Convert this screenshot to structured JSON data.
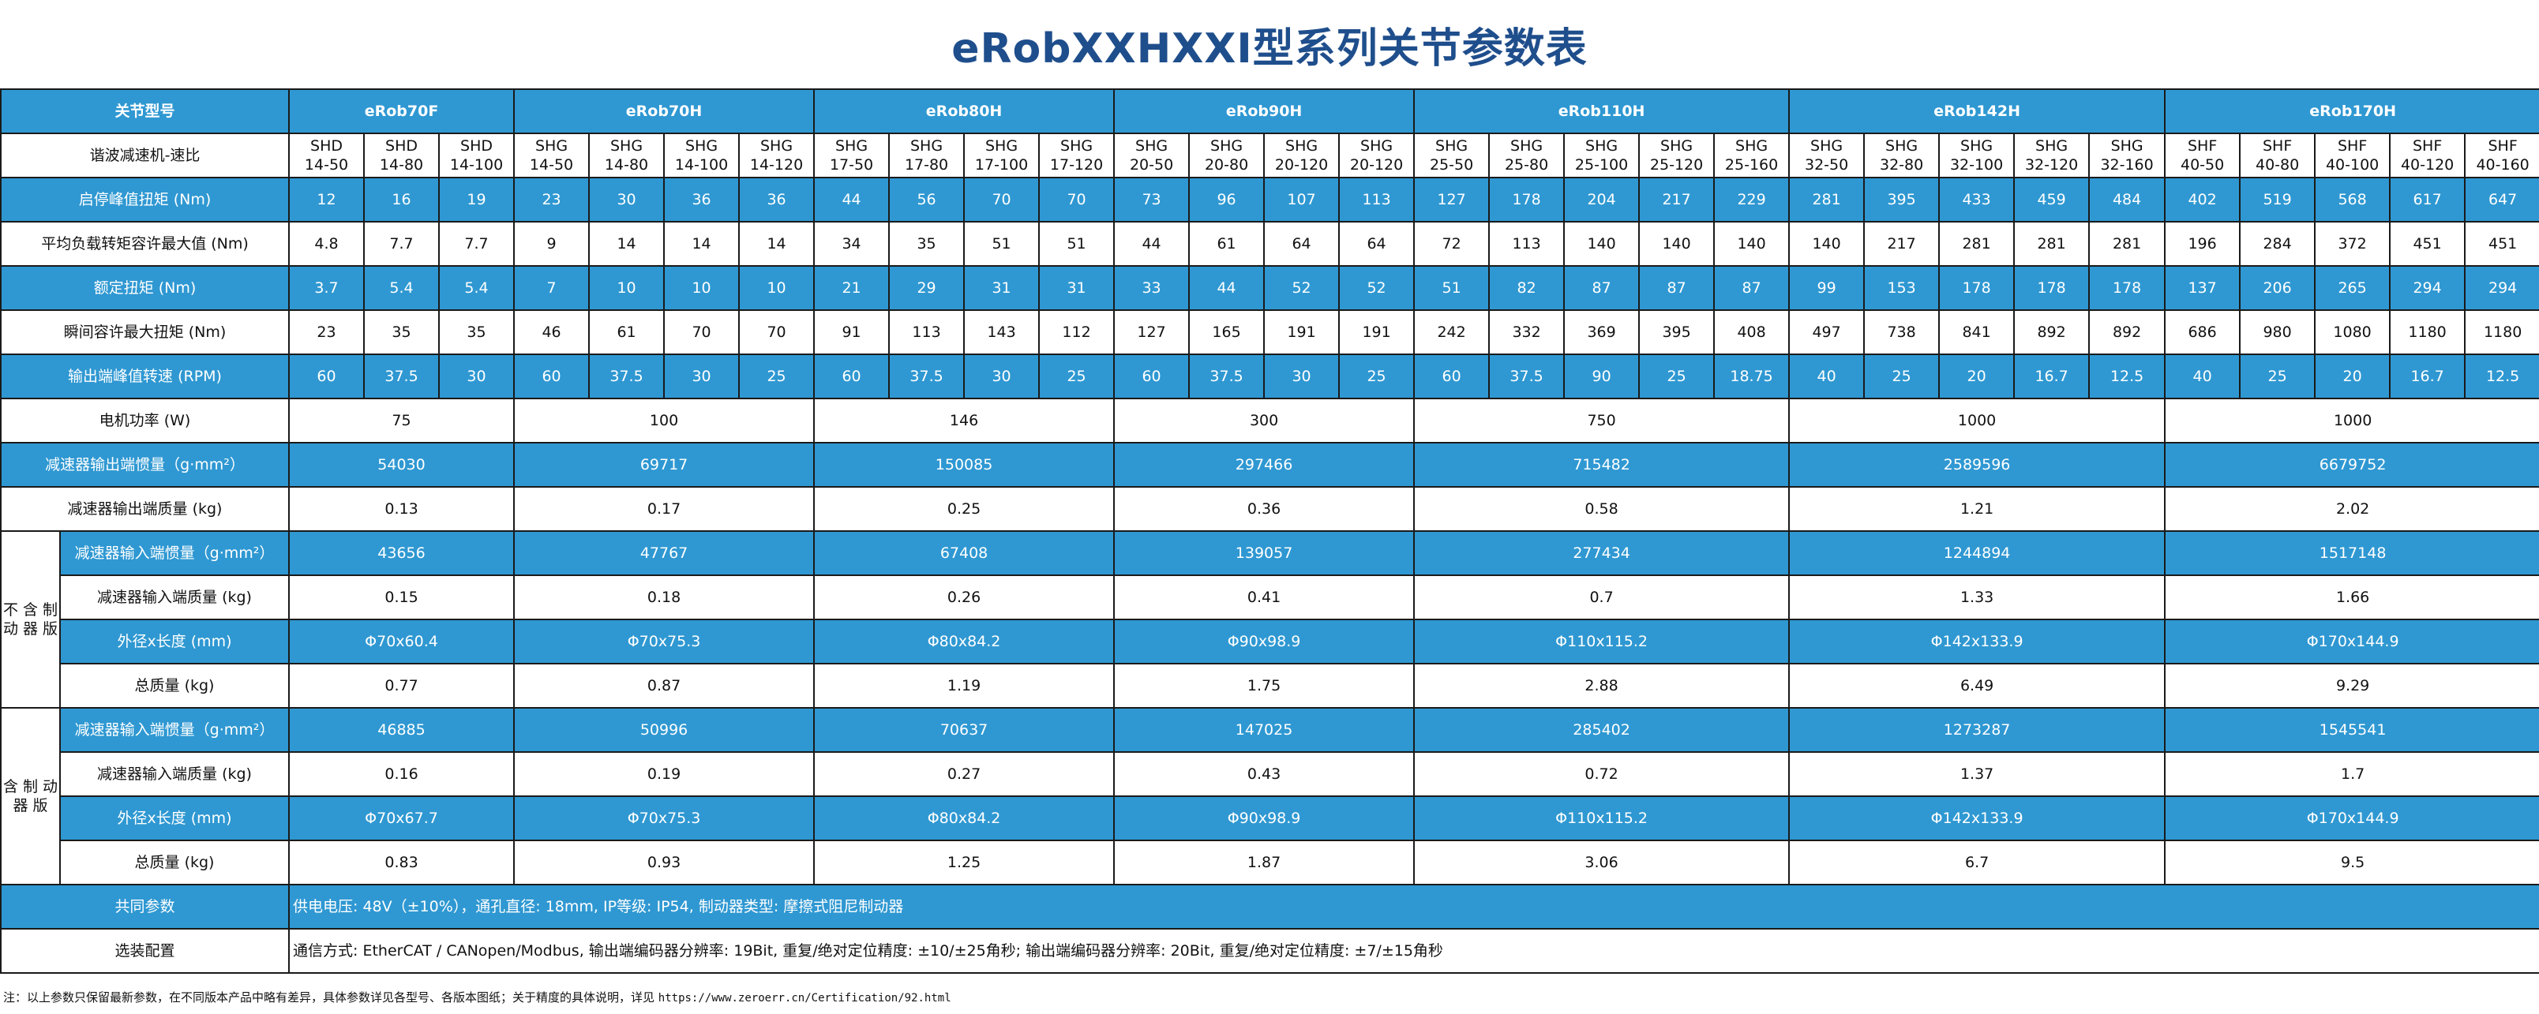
{
  "title": "eRobXXHXXI型系列关节参数表",
  "header": {
    "label": "关节型号",
    "models": [
      "eRob70F",
      "eRob70H",
      "eRob80H",
      "eRob90H",
      "eRob110H",
      "eRob142H",
      "eRob170H"
    ]
  },
  "ratio_row": {
    "label": "谐波减速机-速比",
    "values": [
      "SHD\n14-50",
      "SHD\n14-80",
      "SHD\n14-100",
      "SHG\n14-50",
      "SHG\n14-80",
      "SHG\n14-100",
      "SHG\n14-120",
      "SHG\n17-50",
      "SHG\n17-80",
      "SHG\n17-100",
      "SHG\n17-120",
      "SHG\n20-50",
      "SHG\n20-80",
      "SHG\n20-120",
      "SHG\n20-120",
      "SHG\n25-50",
      "SHG\n25-80",
      "SHG\n25-100",
      "SHG\n25-120",
      "SHG\n25-160",
      "SHG\n32-50",
      "SHG\n32-80",
      "SHG\n32-100",
      "SHG\n32-120",
      "SHG\n32-160",
      "SHF\n40-50",
      "SHF\n40-80",
      "SHF\n40-100",
      "SHF\n40-120",
      "SHF\n40-160"
    ]
  },
  "per_ratio_rows": [
    {
      "label": "启停峰值扭矩 (Nm)",
      "style": "blue",
      "values": [
        "12",
        "16",
        "19",
        "23",
        "30",
        "36",
        "36",
        "44",
        "56",
        "70",
        "70",
        "73",
        "96",
        "107",
        "113",
        "127",
        "178",
        "204",
        "217",
        "229",
        "281",
        "395",
        "433",
        "459",
        "484",
        "402",
        "519",
        "568",
        "617",
        "647"
      ]
    },
    {
      "label": "平均负载转矩容许最大值 (Nm)",
      "style": "white",
      "values": [
        "4.8",
        "7.7",
        "7.7",
        "9",
        "14",
        "14",
        "14",
        "34",
        "35",
        "51",
        "51",
        "44",
        "61",
        "64",
        "64",
        "72",
        "113",
        "140",
        "140",
        "140",
        "140",
        "217",
        "281",
        "281",
        "281",
        "196",
        "284",
        "372",
        "451",
        "451"
      ]
    },
    {
      "label": "额定扭矩 (Nm)",
      "style": "blue",
      "values": [
        "3.7",
        "5.4",
        "5.4",
        "7",
        "10",
        "10",
        "10",
        "21",
        "29",
        "31",
        "31",
        "33",
        "44",
        "52",
        "52",
        "51",
        "82",
        "87",
        "87",
        "87",
        "99",
        "153",
        "178",
        "178",
        "178",
        "137",
        "206",
        "265",
        "294",
        "294"
      ]
    },
    {
      "label": "瞬间容许最大扭矩 (Nm)",
      "style": "white",
      "values": [
        "23",
        "35",
        "35",
        "46",
        "61",
        "70",
        "70",
        "91",
        "113",
        "143",
        "112",
        "127",
        "165",
        "191",
        "191",
        "242",
        "332",
        "369",
        "395",
        "408",
        "497",
        "738",
        "841",
        "892",
        "892",
        "686",
        "980",
        "1080",
        "1180",
        "1180"
      ]
    },
    {
      "label": "输出端峰值转速 (RPM)",
      "style": "blue",
      "values": [
        "60",
        "37.5",
        "30",
        "60",
        "37.5",
        "30",
        "25",
        "60",
        "37.5",
        "30",
        "25",
        "60",
        "37.5",
        "30",
        "25",
        "60",
        "37.5",
        "90",
        "25",
        "18.75",
        "40",
        "25",
        "20",
        "16.7",
        "12.5",
        "40",
        "25",
        "20",
        "16.7",
        "12.5"
      ]
    }
  ],
  "per_model_rows": [
    {
      "label": "电机功率 (W)",
      "style": "white",
      "values": [
        "75",
        "100",
        "146",
        "300",
        "750",
        "1000",
        "1000"
      ]
    },
    {
      "label": "减速器输出端惯量（g·mm²）",
      "style": "blue",
      "values": [
        "54030",
        "69717",
        "150085",
        "297466",
        "715482",
        "2589596",
        "6679752"
      ]
    },
    {
      "label": "减速器输出端质量 (kg)",
      "style": "white",
      "values": [
        "0.13",
        "0.17",
        "0.25",
        "0.36",
        "0.58",
        "1.21",
        "2.02"
      ]
    }
  ],
  "no_brake": {
    "label": "不\n含\n制\n动\n器\n版",
    "rows": [
      {
        "label": "减速器输入端惯量（g·mm²）",
        "style": "blue",
        "values": [
          "43656",
          "47767",
          "67408",
          "139057",
          "277434",
          "1244894",
          "1517148"
        ]
      },
      {
        "label": "减速器输入端质量 (kg)",
        "style": "white",
        "values": [
          "0.15",
          "0.18",
          "0.26",
          "0.41",
          "0.7",
          "1.33",
          "1.66"
        ]
      },
      {
        "label": "外径x长度 (mm)",
        "style": "blue",
        "values": [
          "Φ70x60.4",
          "Φ70x75.3",
          "Φ80x84.2",
          "Φ90x98.9",
          "Φ110x115.2",
          "Φ142x133.9",
          "Φ170x144.9"
        ]
      },
      {
        "label": "总质量 (kg)",
        "style": "white",
        "values": [
          "0.77",
          "0.87",
          "1.19",
          "1.75",
          "2.88",
          "6.49",
          "9.29"
        ]
      }
    ]
  },
  "with_brake": {
    "label": "含\n制\n动\n器\n版",
    "rows": [
      {
        "label": "减速器输入端惯量（g·mm²）",
        "style": "blue",
        "values": [
          "46885",
          "50996",
          "70637",
          "147025",
          "285402",
          "1273287",
          "1545541"
        ]
      },
      {
        "label": "减速器输入端质量 (kg)",
        "style": "white",
        "values": [
          "0.16",
          "0.19",
          "0.27",
          "0.43",
          "0.72",
          "1.37",
          "1.7"
        ]
      },
      {
        "label": "外径x长度 (mm)",
        "style": "blue",
        "values": [
          "Φ70x67.7",
          "Φ70x75.3",
          "Φ80x84.2",
          "Φ90x98.9",
          "Φ110x115.2",
          "Φ142x133.9",
          "Φ170x144.9"
        ]
      },
      {
        "label": "总质量 (kg)",
        "style": "white",
        "values": [
          "0.83",
          "0.93",
          "1.25",
          "1.87",
          "3.06",
          "6.7",
          "9.5"
        ]
      }
    ]
  },
  "common": {
    "label": "共同参数",
    "text": "供电电压: 48V（±10%），通孔直径: 18mm, IP等级: IP54, 制动器类型: 摩擦式阻尼制动器"
  },
  "options": {
    "label": "选装配置",
    "text": "通信方式: EtherCAT / CANopen/Modbus, 输出端编码器分辨率: 19Bit, 重复/绝对定位精度: ±10/±25角秒;\n输出端编码器分辨率: 20Bit, 重复/绝对定位精度: ±7/±15角秒"
  },
  "note": {
    "text": "注：以上参数只保留最新参数，在不同版本产品中略有差异，具体参数详见各型号、各版本图纸；关于精度的具体说明，详见 ",
    "url": "https://www.zeroerr.cn/Certification/92.html"
  },
  "colors": {
    "header_blue": "#2f98d2",
    "title_blue": "#1f4e8c"
  }
}
